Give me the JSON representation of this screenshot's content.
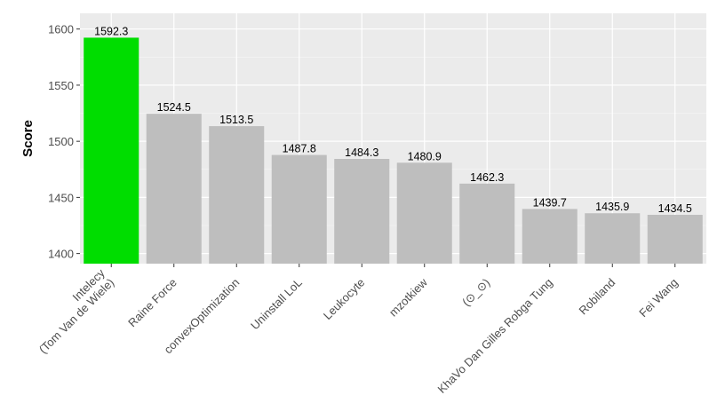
{
  "chart_data": {
    "type": "bar",
    "y_label": "Score",
    "categories": [
      "Intelecy\n(Tom Van de Wiele)",
      "Raine Force",
      "convexOptimization",
      "Uninstall LoL",
      "Leukocyte",
      "mzotkiew",
      "(⊙_⊙)",
      "KhaVo Dan Gilles Robga Tung",
      "Robiland",
      "Fei Wang"
    ],
    "values": [
      1592.3,
      1524.5,
      1513.5,
      1487.8,
      1484.3,
      1480.9,
      1462.3,
      1439.7,
      1435.9,
      1434.5
    ],
    "colors": [
      "#00dd00",
      "#bebebe",
      "#bebebe",
      "#bebebe",
      "#bebebe",
      "#bebebe",
      "#bebebe",
      "#bebebe",
      "#bebebe",
      "#bebebe"
    ],
    "ylim": [
      1391,
      1614
    ],
    "yticks": [
      1400,
      1450,
      1500,
      1550,
      1600
    ],
    "grid": true
  }
}
